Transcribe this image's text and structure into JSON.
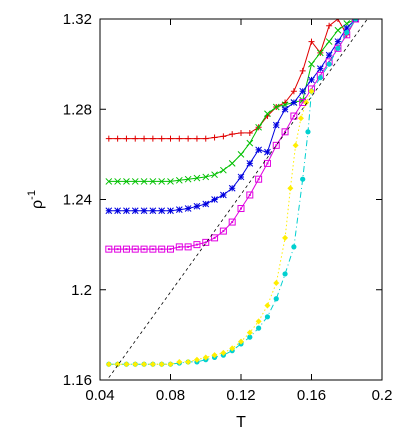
{
  "chart_data": {
    "type": "line",
    "title": "",
    "xlabel": "T",
    "ylabel": "ρ",
    "ylabel_superscript": "-1",
    "xlim": [
      0.04,
      0.2
    ],
    "ylim": [
      1.16,
      1.32
    ],
    "xticks": [
      0.04,
      0.08,
      0.12,
      0.16,
      0.2
    ],
    "xtick_labels": [
      "0.04",
      "0.08",
      "0.12",
      "0.16",
      "0.2"
    ],
    "yticks": [
      1.16,
      1.2,
      1.24,
      1.28,
      1.32
    ],
    "ytick_labels": [
      "1.16",
      "1.2",
      "1.24",
      "1.28",
      "1.32"
    ],
    "grid": false,
    "legend": "none",
    "series": [
      {
        "color": "#e00000",
        "marker": "plus",
        "dash": "solid",
        "x": [
          0.045,
          0.05,
          0.055,
          0.06,
          0.065,
          0.07,
          0.075,
          0.08,
          0.085,
          0.09,
          0.095,
          0.1,
          0.105,
          0.11,
          0.115,
          0.12,
          0.125,
          0.13,
          0.135,
          0.14,
          0.145,
          0.15,
          0.155,
          0.16,
          0.165,
          0.17,
          0.175,
          0.18,
          0.185
        ],
        "y": [
          1.267,
          1.267,
          1.267,
          1.267,
          1.267,
          1.267,
          1.267,
          1.267,
          1.267,
          1.267,
          1.267,
          1.267,
          1.2675,
          1.268,
          1.269,
          1.2695,
          1.2695,
          1.272,
          1.277,
          1.281,
          1.283,
          1.288,
          1.297,
          1.31,
          1.305,
          1.317,
          1.32,
          1.313,
          1.32
        ]
      },
      {
        "color": "#00c000",
        "marker": "cross",
        "dash": "solid",
        "x": [
          0.045,
          0.05,
          0.055,
          0.06,
          0.065,
          0.07,
          0.075,
          0.08,
          0.085,
          0.09,
          0.095,
          0.1,
          0.105,
          0.11,
          0.115,
          0.12,
          0.125,
          0.13,
          0.135,
          0.14,
          0.145,
          0.15,
          0.155,
          0.16,
          0.165,
          0.17,
          0.175,
          0.18,
          0.185
        ],
        "y": [
          1.248,
          1.248,
          1.248,
          1.248,
          1.248,
          1.248,
          1.248,
          1.248,
          1.2485,
          1.249,
          1.2495,
          1.25,
          1.251,
          1.253,
          1.256,
          1.26,
          1.265,
          1.272,
          1.278,
          1.281,
          1.282,
          1.283,
          1.284,
          1.3,
          1.305,
          1.31,
          1.315,
          1.318,
          1.32
        ]
      },
      {
        "color": "#0000e0",
        "marker": "star",
        "dash": "solid",
        "x": [
          0.045,
          0.05,
          0.055,
          0.06,
          0.065,
          0.07,
          0.075,
          0.08,
          0.085,
          0.09,
          0.095,
          0.1,
          0.105,
          0.11,
          0.115,
          0.12,
          0.125,
          0.13,
          0.135,
          0.14,
          0.145,
          0.15,
          0.155,
          0.16,
          0.165,
          0.17,
          0.175,
          0.18,
          0.185
        ],
        "y": [
          1.235,
          1.235,
          1.235,
          1.235,
          1.235,
          1.235,
          1.235,
          1.235,
          1.2355,
          1.236,
          1.237,
          1.238,
          1.24,
          1.242,
          1.245,
          1.25,
          1.256,
          1.262,
          1.261,
          1.273,
          1.28,
          1.283,
          1.288,
          1.293,
          1.298,
          1.304,
          1.31,
          1.316,
          1.32
        ]
      },
      {
        "color": "#e000e0",
        "marker": "box",
        "dash": "solid",
        "x": [
          0.045,
          0.05,
          0.055,
          0.06,
          0.065,
          0.07,
          0.075,
          0.08,
          0.085,
          0.09,
          0.095,
          0.1,
          0.105,
          0.11,
          0.115,
          0.12,
          0.125,
          0.13,
          0.135,
          0.14,
          0.145,
          0.15,
          0.155,
          0.16,
          0.165,
          0.17,
          0.175,
          0.18,
          0.185
        ],
        "y": [
          1.218,
          1.218,
          1.218,
          1.218,
          1.218,
          1.218,
          1.218,
          1.218,
          1.219,
          1.219,
          1.22,
          1.221,
          1.223,
          1.226,
          1.23,
          1.236,
          1.242,
          1.249,
          1.256,
          1.264,
          1.27,
          1.277,
          1.283,
          1.289,
          1.295,
          1.301,
          1.307,
          1.313,
          1.32
        ]
      },
      {
        "color": "#00d0d0",
        "marker": "dot",
        "dash": "dashdot",
        "x": [
          0.045,
          0.05,
          0.055,
          0.06,
          0.065,
          0.07,
          0.075,
          0.08,
          0.085,
          0.09,
          0.095,
          0.1,
          0.105,
          0.11,
          0.115,
          0.12,
          0.125,
          0.13,
          0.135,
          0.14,
          0.145,
          0.15,
          0.155,
          0.158,
          0.16,
          0.165,
          0.17,
          0.175,
          0.18,
          0.185
        ],
        "y": [
          1.167,
          1.167,
          1.167,
          1.167,
          1.167,
          1.167,
          1.167,
          1.167,
          1.1675,
          1.168,
          1.168,
          1.169,
          1.17,
          1.171,
          1.173,
          1.176,
          1.179,
          1.183,
          1.188,
          1.196,
          1.207,
          1.219,
          1.249,
          1.27,
          1.288,
          1.294,
          1.3,
          1.307,
          1.314,
          1.32
        ]
      },
      {
        "color": "#ffee00",
        "marker": "diamond",
        "dash": "dot",
        "x": [
          0.045,
          0.05,
          0.055,
          0.06,
          0.065,
          0.07,
          0.075,
          0.08,
          0.085,
          0.09,
          0.095,
          0.1,
          0.105,
          0.11,
          0.115,
          0.12,
          0.125,
          0.13,
          0.135,
          0.14,
          0.145,
          0.148,
          0.151,
          0.154,
          0.157,
          0.16
        ],
        "y": [
          1.167,
          1.167,
          1.167,
          1.167,
          1.167,
          1.167,
          1.167,
          1.167,
          1.168,
          1.168,
          1.169,
          1.17,
          1.171,
          1.172,
          1.174,
          1.177,
          1.181,
          1.186,
          1.193,
          1.203,
          1.223,
          1.245,
          1.264,
          1.276,
          1.283,
          1.288
        ]
      },
      {
        "color": "#000000",
        "marker": "none",
        "dash": "dashed-thin",
        "x": [
          0.045,
          0.2
        ],
        "y": [
          1.161,
          1.329
        ]
      }
    ]
  }
}
